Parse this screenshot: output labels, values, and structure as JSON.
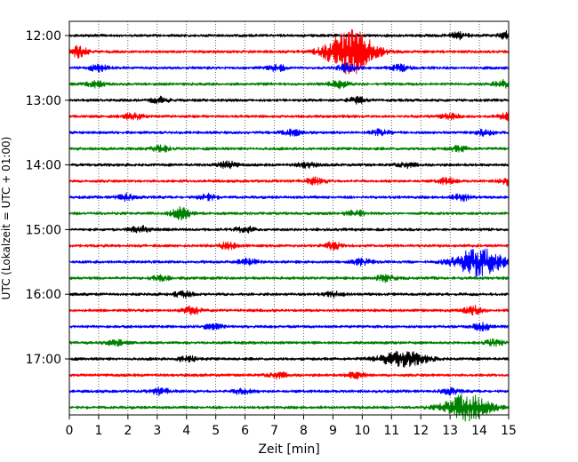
{
  "chart_data": {
    "type": "line",
    "title": "",
    "xlabel": "Zeit  [min]",
    "ylabel": "UTC (Lokalzeit = UTC + 01:00)",
    "xlim": [
      0,
      15
    ],
    "x_ticks": [
      "0",
      "1",
      "2",
      "3",
      "4",
      "5",
      "6",
      "7",
      "8",
      "9",
      "10",
      "11",
      "12",
      "13",
      "14",
      "15"
    ],
    "y_ticks": [
      {
        "label": "12:00",
        "row": 0
      },
      {
        "label": "13:00",
        "row": 4
      },
      {
        "label": "14:00",
        "row": 8
      },
      {
        "label": "15:00",
        "row": 12
      },
      {
        "label": "16:00",
        "row": 16
      },
      {
        "label": "17:00",
        "row": 20
      }
    ],
    "grid": "vertical-dotted",
    "trace_colors": [
      "#000000",
      "#ff0000",
      "#0000ff",
      "#008000"
    ],
    "traces": [
      {
        "start": "12:00",
        "color": "#000000",
        "events": [
          {
            "minute": 13.3,
            "amp": 1.5
          },
          {
            "minute": 15.0,
            "amp": 1.7
          }
        ]
      },
      {
        "start": "12:15",
        "color": "#ff0000",
        "events": [
          {
            "minute": 0.3,
            "amp": 2.3
          },
          {
            "minute": 9.6,
            "amp": 9.5
          }
        ]
      },
      {
        "start": "12:30",
        "color": "#0000ff",
        "events": [
          {
            "minute": 1.0,
            "amp": 1.3
          },
          {
            "minute": 7.1,
            "amp": 1.2
          },
          {
            "minute": 9.5,
            "amp": 1.8
          },
          {
            "minute": 11.3,
            "amp": 1.2
          }
        ]
      },
      {
        "start": "12:45",
        "color": "#008000",
        "events": [
          {
            "minute": 0.9,
            "amp": 1.3
          },
          {
            "minute": 9.2,
            "amp": 1.5
          },
          {
            "minute": 14.8,
            "amp": 1.5
          }
        ]
      },
      {
        "start": "13:00",
        "color": "#000000",
        "events": [
          {
            "minute": 3.1,
            "amp": 1.2
          },
          {
            "minute": 9.8,
            "amp": 1.3
          }
        ]
      },
      {
        "start": "13:15",
        "color": "#ff0000",
        "events": [
          {
            "minute": 2.2,
            "amp": 1.3
          },
          {
            "minute": 13.0,
            "amp": 1.1
          },
          {
            "minute": 15.0,
            "amp": 1.5
          }
        ]
      },
      {
        "start": "13:30",
        "color": "#0000ff",
        "events": [
          {
            "minute": 7.6,
            "amp": 1.2
          },
          {
            "minute": 10.6,
            "amp": 1.3
          },
          {
            "minute": 14.2,
            "amp": 1.2
          }
        ]
      },
      {
        "start": "13:45",
        "color": "#008000",
        "events": [
          {
            "minute": 3.1,
            "amp": 1.3
          },
          {
            "minute": 13.3,
            "amp": 1.1
          }
        ]
      },
      {
        "start": "14:00",
        "color": "#000000",
        "events": [
          {
            "minute": 5.4,
            "amp": 1.5
          },
          {
            "minute": 8.1,
            "amp": 1.1
          },
          {
            "minute": 11.5,
            "amp": 1.1
          }
        ]
      },
      {
        "start": "14:15",
        "color": "#ff0000",
        "events": [
          {
            "minute": 8.4,
            "amp": 1.3
          },
          {
            "minute": 12.9,
            "amp": 1.3
          },
          {
            "minute": 15.0,
            "amp": 1.5
          }
        ]
      },
      {
        "start": "14:30",
        "color": "#0000ff",
        "events": [
          {
            "minute": 1.9,
            "amp": 1.4
          },
          {
            "minute": 4.7,
            "amp": 1.3
          },
          {
            "minute": 13.4,
            "amp": 1.3
          }
        ]
      },
      {
        "start": "14:45",
        "color": "#008000",
        "events": [
          {
            "minute": 3.8,
            "amp": 2.8
          },
          {
            "minute": 9.8,
            "amp": 1.2
          }
        ]
      },
      {
        "start": "15:00",
        "color": "#000000",
        "events": [
          {
            "minute": 2.4,
            "amp": 1.4
          },
          {
            "minute": 6.0,
            "amp": 1.3
          }
        ]
      },
      {
        "start": "15:15",
        "color": "#ff0000",
        "events": [
          {
            "minute": 5.4,
            "amp": 1.3
          },
          {
            "minute": 9.0,
            "amp": 1.5
          }
        ]
      },
      {
        "start": "15:30",
        "color": "#0000ff",
        "events": [
          {
            "minute": 6.1,
            "amp": 1.3
          },
          {
            "minute": 10.0,
            "amp": 1.3
          },
          {
            "minute": 14.0,
            "amp": 6.0
          }
        ]
      },
      {
        "start": "15:45",
        "color": "#008000",
        "events": [
          {
            "minute": 3.1,
            "amp": 1.1
          },
          {
            "minute": 10.8,
            "amp": 1.3
          }
        ]
      },
      {
        "start": "16:00",
        "color": "#000000",
        "events": [
          {
            "minute": 3.9,
            "amp": 1.3
          },
          {
            "minute": 9.0,
            "amp": 1.1
          }
        ]
      },
      {
        "start": "16:15",
        "color": "#ff0000",
        "events": [
          {
            "minute": 4.2,
            "amp": 1.6
          },
          {
            "minute": 13.8,
            "amp": 1.8
          }
        ]
      },
      {
        "start": "16:30",
        "color": "#0000ff",
        "events": [
          {
            "minute": 4.9,
            "amp": 1.2
          },
          {
            "minute": 14.1,
            "amp": 1.5
          }
        ]
      },
      {
        "start": "16:45",
        "color": "#008000",
        "events": [
          {
            "minute": 1.6,
            "amp": 1.1
          },
          {
            "minute": 14.5,
            "amp": 1.3
          }
        ]
      },
      {
        "start": "17:00",
        "color": "#000000",
        "events": [
          {
            "minute": 4.0,
            "amp": 1.3
          },
          {
            "minute": 11.4,
            "amp": 3.2
          }
        ]
      },
      {
        "start": "17:15",
        "color": "#ff0000",
        "events": [
          {
            "minute": 7.1,
            "amp": 1.3
          },
          {
            "minute": 9.8,
            "amp": 1.4
          }
        ]
      },
      {
        "start": "17:30",
        "color": "#0000ff",
        "events": [
          {
            "minute": 3.1,
            "amp": 1.3
          },
          {
            "minute": 5.9,
            "amp": 1.3
          },
          {
            "minute": 13.0,
            "amp": 1.2
          }
        ]
      },
      {
        "start": "17:45",
        "color": "#008000",
        "events": [
          {
            "minute": 13.6,
            "amp": 5.5
          }
        ]
      }
    ]
  }
}
